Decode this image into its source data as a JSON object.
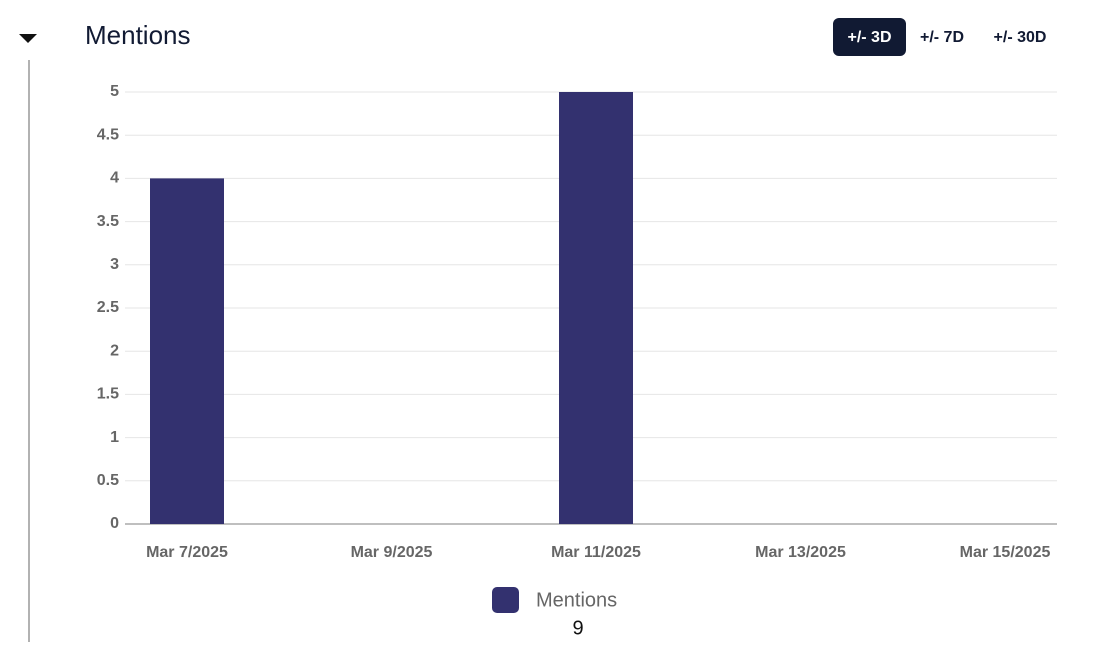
{
  "header": {
    "title": "Mentions",
    "buttons": [
      "+/- 3D",
      "+/- 7D",
      "+/- 30D"
    ],
    "active_button": 0
  },
  "chart_data": {
    "type": "bar",
    "categories": [
      "Mar 7/2025",
      "Mar 9/2025",
      "Mar 11/2025",
      "Mar 13/2025",
      "Mar 15/2025"
    ],
    "series": [
      {
        "name": "Mentions",
        "color": "#33316f",
        "values": [
          4,
          0,
          5,
          0,
          0
        ]
      }
    ],
    "ylim": [
      0,
      5
    ],
    "yticks": [
      0,
      0.5,
      1,
      1.5,
      2,
      2.5,
      3,
      3.5,
      4,
      4.5,
      5
    ],
    "grid": true,
    "total": 9
  }
}
